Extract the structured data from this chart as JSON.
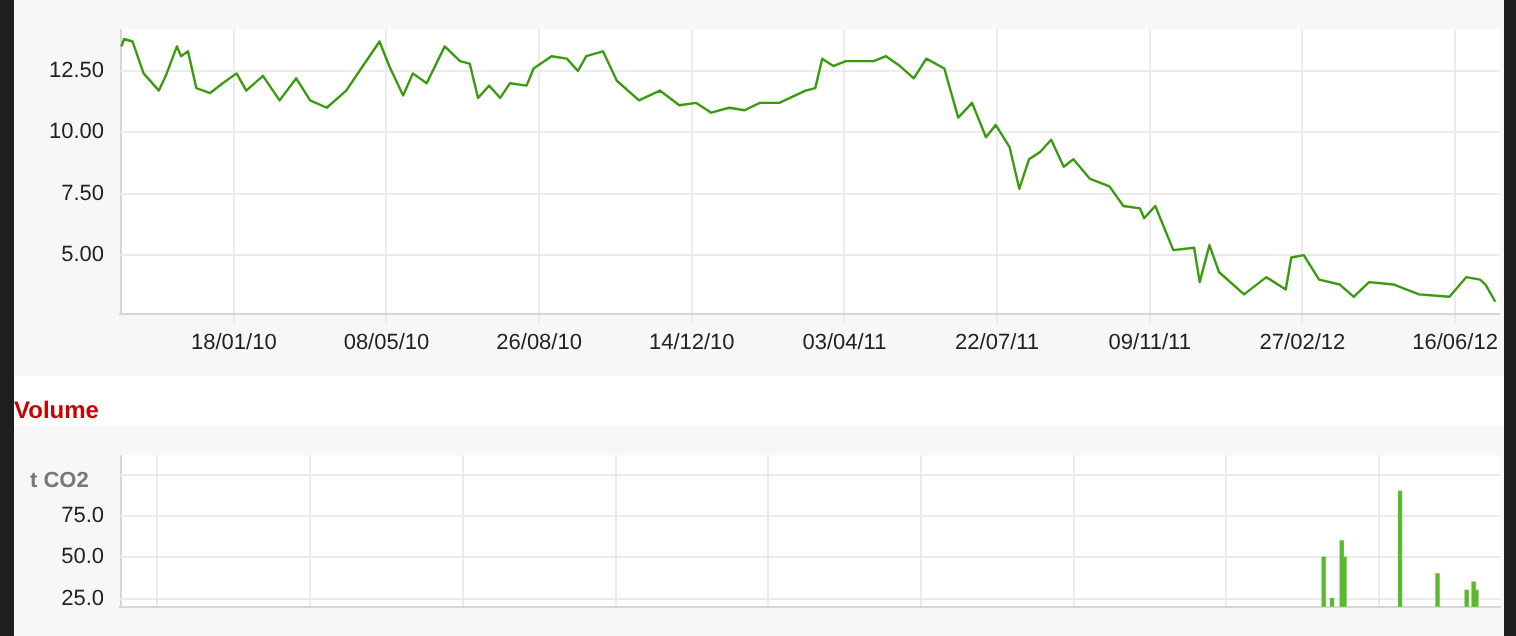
{
  "chart_data": [
    {
      "type": "line",
      "color": "#3a9a0e",
      "x": [
        "2009-10-29",
        "2009-10-31",
        "2009-11-06",
        "2009-11-14",
        "2009-11-25",
        "2009-11-30",
        "2009-12-08",
        "2009-12-11",
        "2009-12-16",
        "2009-12-22",
        "2010-01-01",
        "2010-01-10",
        "2010-01-20",
        "2010-01-27",
        "2010-02-08",
        "2010-02-20",
        "2010-03-04",
        "2010-03-14",
        "2010-03-26",
        "2010-04-09",
        "2010-04-21",
        "2010-05-03",
        "2010-05-10",
        "2010-05-20",
        "2010-05-27",
        "2010-06-06",
        "2010-06-19",
        "2010-06-30",
        "2010-07-07",
        "2010-07-13",
        "2010-07-21",
        "2010-07-29",
        "2010-08-05",
        "2010-08-17",
        "2010-08-22",
        "2010-09-04",
        "2010-09-15",
        "2010-09-23",
        "2010-09-29",
        "2010-10-11",
        "2010-10-21",
        "2010-11-06",
        "2010-11-21",
        "2010-12-05",
        "2010-12-17",
        "2010-12-28",
        "2011-01-10",
        "2011-01-21",
        "2011-02-01",
        "2011-02-15",
        "2011-03-06",
        "2011-03-13",
        "2011-03-18",
        "2011-03-26",
        "2011-04-04",
        "2011-04-24",
        "2011-05-03",
        "2011-05-13",
        "2011-05-23",
        "2011-06-01",
        "2011-06-14",
        "2011-06-24",
        "2011-07-04",
        "2011-07-14",
        "2011-07-21",
        "2011-07-31",
        "2011-08-07",
        "2011-08-14",
        "2011-08-22",
        "2011-08-30",
        "2011-09-08",
        "2011-09-15",
        "2011-09-27",
        "2011-10-11",
        "2011-10-21",
        "2011-11-02",
        "2011-11-05",
        "2011-11-13",
        "2011-11-26",
        "2011-12-11",
        "2011-12-15",
        "2011-12-22",
        "2011-12-29",
        "2012-01-16",
        "2012-02-01",
        "2012-02-15",
        "2012-02-19",
        "2012-02-28",
        "2012-03-10",
        "2012-03-25",
        "2012-04-04",
        "2012-04-15",
        "2012-05-03",
        "2012-05-21",
        "2012-06-12",
        "2012-06-24",
        "2012-07-04",
        "2012-07-08",
        "2012-07-15"
      ],
      "values": [
        13.5,
        13.8,
        13.7,
        12.4,
        11.7,
        12.3,
        13.5,
        13.1,
        13.3,
        11.8,
        11.6,
        12.0,
        12.4,
        11.7,
        12.3,
        11.3,
        12.2,
        11.3,
        11.0,
        11.7,
        12.7,
        13.7,
        12.7,
        11.5,
        12.4,
        12.0,
        13.5,
        12.9,
        12.8,
        11.4,
        11.9,
        11.4,
        12.0,
        11.9,
        12.6,
        13.1,
        13.0,
        12.5,
        13.1,
        13.3,
        12.1,
        11.3,
        11.7,
        11.1,
        11.2,
        10.8,
        11.0,
        10.9,
        11.2,
        11.2,
        11.7,
        11.8,
        13.0,
        12.7,
        12.9,
        12.9,
        13.1,
        12.7,
        12.2,
        13.0,
        12.6,
        10.6,
        11.2,
        9.8,
        10.3,
        9.4,
        7.7,
        8.9,
        9.2,
        9.7,
        8.6,
        8.9,
        8.1,
        7.8,
        7.0,
        6.9,
        6.5,
        7.0,
        5.2,
        5.3,
        3.9,
        5.4,
        4.3,
        3.4,
        4.1,
        3.6,
        4.9,
        5.0,
        4.0,
        3.8,
        3.3,
        3.9,
        3.8,
        3.4,
        3.3,
        4.1,
        4.0,
        3.8,
        3.1
      ],
      "xlim": [
        "2009-10-28",
        "2012-07-18"
      ],
      "xticks": [
        {
          "value": "2010-01-18",
          "label": "18/01/10"
        },
        {
          "value": "2010-05-08",
          "label": "08/05/10"
        },
        {
          "value": "2010-08-26",
          "label": "26/08/10"
        },
        {
          "value": "2010-12-14",
          "label": "14/12/10"
        },
        {
          "value": "2011-04-03",
          "label": "03/04/11"
        },
        {
          "value": "2011-07-22",
          "label": "22/07/11"
        },
        {
          "value": "2011-11-09",
          "label": "09/11/11"
        },
        {
          "value": "2012-02-27",
          "label": "27/02/12"
        },
        {
          "value": "2012-06-16",
          "label": "16/06/12"
        }
      ],
      "ylim": [
        2.6,
        14.2
      ],
      "yticks": [
        {
          "value": 5,
          "label": "5.00"
        },
        {
          "value": 7.5,
          "label": "7.50"
        },
        {
          "value": 10,
          "label": "10.00"
        },
        {
          "value": 12.5,
          "label": "12.50"
        }
      ],
      "grid": true
    },
    {
      "type": "bar",
      "title": "Volume",
      "ylabel": "t CO2",
      "color": "#5cb82e",
      "x": [
        "2012-03-13",
        "2012-03-19",
        "2012-03-26",
        "2012-03-28",
        "2012-05-07",
        "2012-06-03",
        "2012-06-24",
        "2012-06-29",
        "2012-07-01"
      ],
      "values": [
        50,
        25,
        60,
        50,
        90,
        40,
        30,
        35,
        30
      ],
      "xlim": [
        "2009-10-28",
        "2012-07-18"
      ],
      "xticks": [
        {
          "value": "2010-01-18",
          "label": null
        },
        {
          "value": "2010-05-08",
          "label": null
        },
        {
          "value": "2010-08-26",
          "label": null
        },
        {
          "value": "2010-12-14",
          "label": null
        },
        {
          "value": "2011-04-03",
          "label": null
        },
        {
          "value": "2011-07-22",
          "label": null
        },
        {
          "value": "2011-11-09",
          "label": null
        },
        {
          "value": "2012-02-27",
          "label": null
        },
        {
          "value": "2012-06-16",
          "label": null
        }
      ],
      "ylim": [
        20,
        112
      ],
      "yticks": [
        {
          "value": 25,
          "label": "25.0"
        },
        {
          "value": 50,
          "label": "50.0"
        },
        {
          "value": 75,
          "label": "75.0"
        },
        {
          "value": 100,
          "label": null
        }
      ],
      "tick_labels": "y",
      "grid": true
    }
  ]
}
